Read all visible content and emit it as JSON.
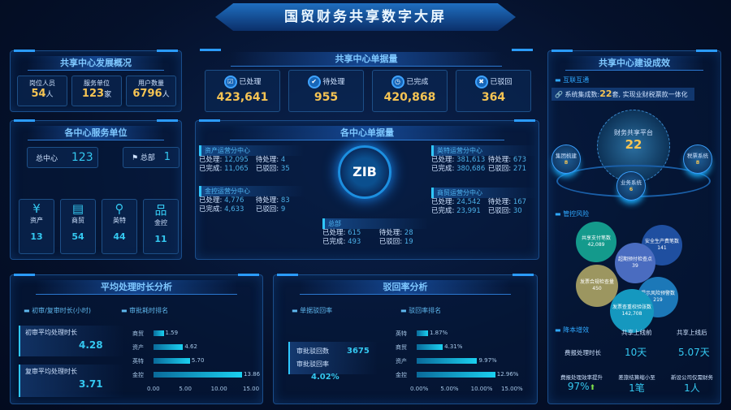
{
  "title": "国贸财务共享数字大屏",
  "overview": {
    "title": "共享中心发展概况",
    "items": [
      {
        "label": "岗位人员",
        "value": "54",
        "unit": "人"
      },
      {
        "label": "服务单位",
        "value": "123",
        "unit": "家"
      },
      {
        "label": "用户数量",
        "value": "6796",
        "unit": "人"
      }
    ]
  },
  "units": {
    "title": "各中心服务单位",
    "center": {
      "label": "总中心",
      "value": "123"
    },
    "hq": {
      "label": "总部",
      "value": "1"
    },
    "items": [
      {
        "label": "资产",
        "value": "13",
        "icon": "yen-icon"
      },
      {
        "label": "商贸",
        "value": "54",
        "icon": "store-icon"
      },
      {
        "label": "英特",
        "value": "44",
        "icon": "network-icon"
      },
      {
        "label": "金控",
        "value": "11",
        "icon": "org-chart-icon"
      }
    ]
  },
  "docs": {
    "title": "共享中心单据量",
    "items": [
      {
        "label": "已处理",
        "value": "423,641"
      },
      {
        "label": "待处理",
        "value": "955"
      },
      {
        "label": "已完成",
        "value": "420,868"
      },
      {
        "label": "已驳回",
        "value": "364"
      }
    ]
  },
  "centers": {
    "title": "各中心单据量",
    "logo": "ZIB",
    "labels": {
      "processed": "已处理:",
      "pending": "待处理:",
      "done": "已完成:",
      "rejected": "已驳回:"
    },
    "items": [
      {
        "name": "资产运营分中心",
        "processed": "12,095",
        "pending": "4",
        "done": "11,065",
        "rejected": "35"
      },
      {
        "name": "金控运营分中心",
        "processed": "4,776",
        "pending": "83",
        "done": "4,633",
        "rejected": "9"
      },
      {
        "name": "英特运营分中心",
        "processed": "381,613",
        "pending": "673",
        "done": "380,686",
        "rejected": "271"
      },
      {
        "name": "商贸运营分中心",
        "processed": "24,542",
        "pending": "167",
        "done": "23,991",
        "rejected": "30"
      },
      {
        "name": "总部",
        "processed": "615",
        "pending": "28",
        "done": "493",
        "rejected": "19"
      }
    ]
  },
  "effect": {
    "title": "共享中心建设成效",
    "interconnect": "互联互通",
    "banner_pre": "系统集成数:",
    "banner_num": "22",
    "banner_post": "套, 实现业财税票款一体化",
    "platform": {
      "label": "财务共享平台",
      "value": "22"
    },
    "satellites": [
      {
        "label": "集团梳建",
        "value": "8"
      },
      {
        "label": "业务系统",
        "value": "6"
      },
      {
        "label": "税票系统",
        "value": "8"
      }
    ],
    "risk": "管控风险",
    "bubbles": [
      {
        "label": "共享支付笔数",
        "value": "42,089",
        "color": "#149a8c"
      },
      {
        "label": "安全生产费笔数",
        "value": "141",
        "color": "#1f4fa0"
      },
      {
        "label": "超期预付检查点",
        "value": "39",
        "color": "#4a6cc0"
      },
      {
        "label": "发票合规检查量",
        "value": "450",
        "color": "#9c9660"
      },
      {
        "label": "提示风险预警数",
        "value": "219",
        "color": "#1c78b8"
      },
      {
        "label": "发票查重校验张数",
        "value": "142,708",
        "color": "#1598bf"
      }
    ],
    "cost": "降本增效",
    "before": "共享上线前",
    "after": "共享上线后",
    "metric": "费报处理时长",
    "before_val": "10天",
    "after_val": "5.07天",
    "kpis": [
      {
        "label": "费报处理效率提升",
        "value": "97%"
      },
      {
        "label": "差旅结算缩小至",
        "value": "1笔"
      },
      {
        "label": "新设公司仅需财务",
        "value": "1人"
      }
    ]
  },
  "avg": {
    "title": "平均处理时长分析",
    "sub1": "初审/复审时长(小时)",
    "sub2": "审批耗时排名",
    "first_label": "初审平均处理时长",
    "first_value": "4.28",
    "second_label": "复审平均处理时长",
    "second_value": "3.71"
  },
  "reject": {
    "title": "驳回率分析",
    "sub1": "单据驳回率",
    "sub2": "驳回率排名",
    "count_label": "审批驳回数",
    "count_value": "3675",
    "rate_label": "审批驳回率",
    "rate_value": "4.02%"
  },
  "chart_data": [
    {
      "type": "bar",
      "orientation": "horizontal",
      "categories": [
        "商贸",
        "资产",
        "英特",
        "金控"
      ],
      "values": [
        1.59,
        4.62,
        5.7,
        13.86
      ],
      "value_labels": [
        "1.59",
        "4.62",
        "5.70",
        "13.86"
      ],
      "xlim": [
        0,
        15
      ],
      "ticks": [
        "0.00",
        "5.00",
        "10.00",
        "15.00"
      ]
    },
    {
      "type": "bar",
      "orientation": "horizontal",
      "categories": [
        "英特",
        "商贸",
        "资产",
        "金控"
      ],
      "values": [
        1.87,
        4.31,
        9.97,
        12.96
      ],
      "value_labels": [
        "1.87%",
        "4.31%",
        "9.97%",
        "12.96%"
      ],
      "xlim": [
        0,
        15
      ],
      "ticks": [
        "0.00%",
        "5.00%",
        "10.00%",
        "15.00%"
      ]
    }
  ]
}
